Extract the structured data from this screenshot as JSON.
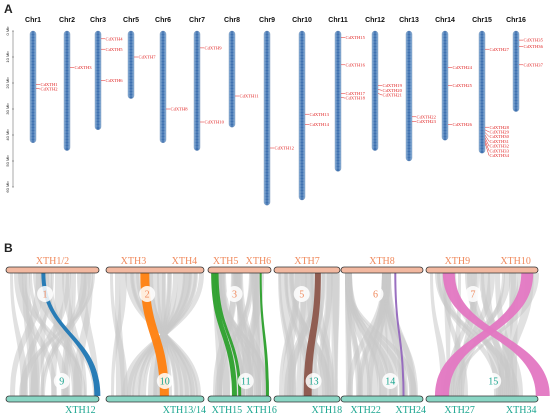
{
  "panel_a": {
    "label": "A",
    "scale_labels": [
      "0 Mb",
      "10 Mb",
      "20 Mb",
      "30 Mb",
      "40 Mb",
      "50 Mb",
      "60 Mb"
    ],
    "chromosomes": [
      {
        "name": "Chr1",
        "genes": [
          "CdXTH1",
          "CdXTH2"
        ]
      },
      {
        "name": "Chr2",
        "genes": [
          "CdXTH3"
        ]
      },
      {
        "name": "Chr3",
        "genes": [
          "CdXTH4",
          "CdXTH5",
          "CdXTH6"
        ]
      },
      {
        "name": "Chr5",
        "genes": [
          "CdXTH7"
        ]
      },
      {
        "name": "Chr6",
        "genes": [
          "CdXTH8"
        ]
      },
      {
        "name": "Chr7",
        "genes": [
          "CdXTH9",
          "CdXTH10"
        ]
      },
      {
        "name": "Chr8",
        "genes": [
          "CdXTH11"
        ]
      },
      {
        "name": "Chr9",
        "genes": [
          "CdXTH12"
        ]
      },
      {
        "name": "Chr10",
        "genes": [
          "CdXTH13",
          "CdXTH14"
        ]
      },
      {
        "name": "Chr11",
        "genes": [
          "CdXTH15",
          "CdXTH16",
          "CdXTH17",
          "CdXTH18"
        ]
      },
      {
        "name": "Chr12",
        "genes": [
          "CdXTH19",
          "CdXTH20",
          "CdXTH21"
        ]
      },
      {
        "name": "Chr13",
        "genes": [
          "CdXTH22",
          "CdXTH23"
        ]
      },
      {
        "name": "Chr14",
        "genes": [
          "CdXTH24",
          "CdXTH25",
          "CdXTH26"
        ]
      },
      {
        "name": "Chr15",
        "genes": [
          "CdXTH27",
          "CdXTH28",
          "CdXTH29",
          "CdXTH30",
          "CdXTH31",
          "CdXTH32",
          "CdXTH33",
          "CdXTH34"
        ]
      },
      {
        "name": "Chr16",
        "genes": [
          "CdXTH35",
          "CdXTH36",
          "CdXTH37"
        ]
      }
    ]
  },
  "panel_b": {
    "label": "B",
    "blocks": [
      {
        "top_labels": [
          "XTH1/2"
        ],
        "bottom_labels": [
          "XTH12"
        ],
        "top_num": "1",
        "bottom_num": "9",
        "color": "#1f77b4"
      },
      {
        "top_labels": [
          "XTH3",
          "XTH4"
        ],
        "bottom_labels": [
          "XTH13/14"
        ],
        "top_num": "2",
        "bottom_num": "10",
        "color": "#ff7f0e"
      },
      {
        "top_labels": [
          "XTH5",
          "XTH6"
        ],
        "bottom_labels": [
          "XTH15",
          "XTH16"
        ],
        "top_num": "3",
        "bottom_num": "11",
        "color": "#2ca02c"
      },
      {
        "top_labels": [
          "XTH7"
        ],
        "bottom_labels": [
          "XTH18"
        ],
        "top_num": "5",
        "bottom_num": "13",
        "color": "#8c564b"
      },
      {
        "top_labels": [
          "XTH8"
        ],
        "bottom_labels": [
          "XTH22",
          "XTH24"
        ],
        "top_num": "6",
        "bottom_num": "14",
        "color": "#9467bd"
      },
      {
        "top_labels": [
          "XTH9",
          "XTH10"
        ],
        "bottom_labels": [
          "XTH27",
          "XTH34"
        ],
        "top_num": "7",
        "bottom_num": "15",
        "color": "#e377c2"
      }
    ]
  }
}
